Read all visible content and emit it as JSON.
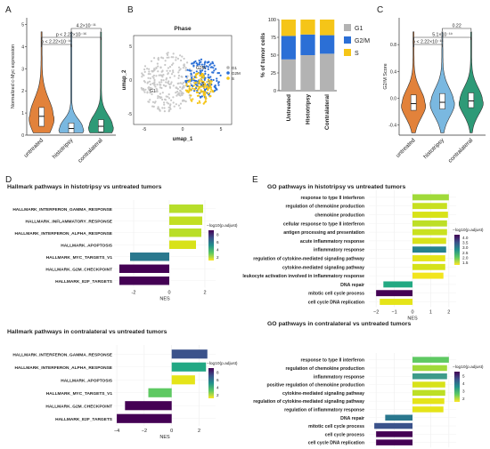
{
  "panels": {
    "A": "A",
    "B": "B",
    "C": "C",
    "D": "D",
    "E": "E"
  },
  "colors": {
    "untreated": "#e2823b",
    "histotripsy": "#7ab8e0",
    "contralateral": "#2e9a77",
    "G1": "#b3b3b3",
    "G2M": "#2b6fd6",
    "S": "#f5c518",
    "umap_gray": "#c8c8c8"
  },
  "chart_data": [
    {
      "id": "A",
      "type": "violin",
      "ylabel": "Normalized c-Myc expression",
      "categories": [
        "untreated",
        "histotripsy",
        "contralateral"
      ],
      "yticks": [
        "0",
        "1",
        "2",
        "3",
        "4",
        "5"
      ],
      "ylim": [
        0,
        5.3
      ],
      "median": [
        0.85,
        0.3,
        0.4
      ],
      "q1": [
        0.4,
        0.1,
        0.15
      ],
      "q3": [
        1.25,
        0.55,
        0.7
      ],
      "annotations": [
        "p < 2.22×10⁻¹⁶",
        "p < 2.22×10⁻¹⁶",
        "4.2×10⁻¹¹"
      ]
    },
    {
      "id": "B-umap",
      "type": "scatter",
      "title": "Phase",
      "xlabel": "umap_1",
      "ylabel": "umap_2",
      "xticks": [
        "-5",
        "0",
        "5"
      ],
      "yticks": [
        "-5",
        "0",
        "5"
      ],
      "legend": [
        "G1",
        "G2M",
        "S"
      ],
      "cluster_labels": [
        "G1",
        "G2M",
        "S"
      ]
    },
    {
      "id": "B-bar",
      "type": "bar",
      "stacked": true,
      "ylabel": "% of tumor cells",
      "categories": [
        "Untreated",
        "Histotripsy",
        "Contralateral"
      ],
      "yticks": [
        "0",
        "25",
        "50",
        "75",
        "100"
      ],
      "ylim": [
        0,
        100
      ],
      "series": [
        {
          "name": "G1",
          "values": [
            44,
            50,
            52
          ]
        },
        {
          "name": "G2/M",
          "values": [
            33,
            29,
            26
          ]
        },
        {
          "name": "S",
          "values": [
            23,
            21,
            22
          ]
        }
      ]
    },
    {
      "id": "C",
      "type": "violin",
      "ylabel": "G2/M Score",
      "categories": [
        "untreated",
        "histotripsy",
        "contralateral"
      ],
      "yticks": [
        "-0.4",
        "0.0",
        "0.4",
        "0.8"
      ],
      "ylim": [
        -0.55,
        1.2
      ],
      "median": [
        -0.08,
        -0.06,
        -0.04
      ],
      "q1": [
        -0.18,
        -0.16,
        -0.14
      ],
      "q3": [
        0.05,
        0.07,
        0.08
      ],
      "annotations": [
        "p < 2.22×10⁻¹⁶",
        "5.1×10⁻¹⁰",
        "0.22"
      ]
    },
    {
      "id": "D1",
      "type": "bar",
      "orientation": "horizontal",
      "title": "Hallmark pathways in histotripsy vs untreated tumors",
      "xlabel": "NES",
      "xticks": [
        "-2",
        "0",
        "2"
      ],
      "xlim": [
        -3.1,
        2.6
      ],
      "legend_title": "−log10(p.adjust)",
      "legend_ticks": [
        "8",
        "6",
        "4",
        "2"
      ],
      "categories": [
        "HALLMARK_INTERFERON_GAMMA_RESPONSE",
        "HALLMARK_INFLAMMATORY_RESPONSE",
        "HALLMARK_INTERFERON_ALPHA_RESPONSE",
        "HALLMARK_APOPTOSIS",
        "HALLMARK_MYC_TARGETS_V1",
        "HALLMARK_G2M_CHECKPOINT",
        "HALLMARK_E2F_TARGETS"
      ],
      "values": [
        1.9,
        1.85,
        1.8,
        1.5,
        -2.2,
        -2.8,
        -2.8
      ],
      "colors": [
        "#b7de2a",
        "#c2df22",
        "#b9de28",
        "#d8e219",
        "#2a788e",
        "#440154",
        "#440154"
      ]
    },
    {
      "id": "E1",
      "type": "bar",
      "orientation": "horizontal",
      "title": "GO pathways in histotripsy vs untreated tumors",
      "xlabel": "NES",
      "xticks": [
        "−2",
        "−1",
        "0",
        "1",
        "2"
      ],
      "xlim": [
        -2.4,
        2.4
      ],
      "legend_title": "−log10(p.adjust)",
      "legend_ticks": [
        "4.0",
        "3.5",
        "3.0",
        "2.5",
        "2.0",
        "1.5"
      ],
      "categories": [
        "response to type II interferon",
        "regulation of chemokine production",
        "chemokine production",
        "cellular response to type II interferon",
        "antigen processing and presentation",
        "acute inflammatory response",
        "inflammatory response",
        "regulation of cytokine-mediated signaling pathway",
        "cytokine-mediated signaling pathway",
        "leukocyte activation involved in inflammatory response",
        "DNA repair",
        "mitotic cell cycle process",
        "cell cycle DNA replication"
      ],
      "values": [
        2.0,
        1.9,
        1.95,
        1.9,
        1.9,
        1.85,
        1.85,
        1.8,
        1.8,
        1.7,
        -1.6,
        -2.0,
        -1.8
      ],
      "colors": [
        "#a0da39",
        "#c8e020",
        "#d8e219",
        "#bddf26",
        "#cae11f",
        "#d8e219",
        "#26828e",
        "#e5e419",
        "#d5e21a",
        "#f2e51d",
        "#23a983",
        "#440154",
        "#e5e419"
      ]
    },
    {
      "id": "D2",
      "type": "bar",
      "orientation": "horizontal",
      "title": "Hallmark pathways in contralateral vs untreated tumors",
      "xlabel": "NES",
      "xticks": [
        "−4",
        "−2",
        "0",
        "2"
      ],
      "xlim": [
        -4.2,
        3.2
      ],
      "legend_title": "−log10(p.adjust)",
      "legend_ticks": [
        "8",
        "6",
        "4",
        "2"
      ],
      "categories": [
        "HALLMARK_INTERFERON_GAMMA_RESPONSE",
        "HALLMARK_INTERFERON_ALPHA_RESPONSE",
        "HALLMARK_APOPTOSIS",
        "HALLMARK_MYC_TARGETS_V1",
        "HALLMARK_G2M_CHECKPOINT",
        "HALLMARK_E2F_TARGETS"
      ],
      "values": [
        2.6,
        2.5,
        1.7,
        -1.7,
        -3.4,
        -4.0
      ],
      "colors": [
        "#3b528b",
        "#22a884",
        "#e5e419",
        "#5ec962",
        "#440154",
        "#440154"
      ]
    },
    {
      "id": "E2",
      "type": "bar",
      "orientation": "horizontal",
      "title": "GO pathways in contralateral vs untreated tumors",
      "xlabel": "NES",
      "xticks": [
        "−2",
        "−1",
        "0",
        "1",
        "2"
      ],
      "xlim": [
        -2.4,
        2.4
      ],
      "legend_title": "−log10(p.adjust)",
      "legend_ticks": [
        "5",
        "4",
        "3",
        "2"
      ],
      "categories": [
        "response to type II interferon",
        "regulation of chemokine production",
        "inflammatory response",
        "positive regulation of chemokine production",
        "cytokine-mediated signaling pathway",
        "regulation of cytokine-mediated signaling pathway",
        "regulation of inflammatory response",
        "DNA repair",
        "mitotic cell cycle process",
        "cell cycle process",
        "cell cycle DNA replication"
      ],
      "values": [
        2.0,
        1.9,
        1.9,
        1.8,
        1.8,
        1.75,
        1.7,
        -1.5,
        -2.1,
        -2.0,
        -2.0
      ],
      "colors": [
        "#5ec962",
        "#a0da39",
        "#3e9b8a",
        "#d8e219",
        "#bddf26",
        "#e5e419",
        "#e5e419",
        "#2a788e",
        "#3b528b",
        "#440154",
        "#440154"
      ]
    }
  ]
}
